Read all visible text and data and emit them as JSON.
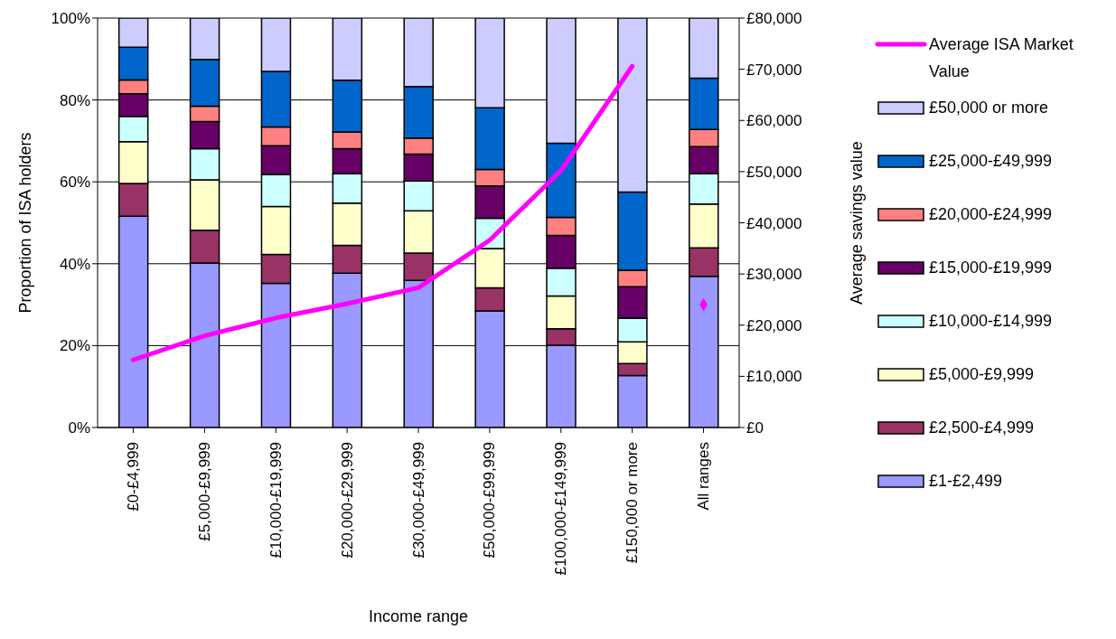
{
  "chart_data": {
    "type": "bar",
    "stacked": true,
    "xlabel": "Income range",
    "ylabel": "Proportion of ISA holders",
    "y2label": "Average savings value",
    "categories": [
      "£0-£4,999",
      "£5,000-£9,999",
      "£10,000-£19,999",
      "£20,000-£29,999",
      "£30,000-£49,999",
      "£50,000-£99,999",
      "£100,000-£149,999",
      "£150,000 or more",
      "All ranges"
    ],
    "series": [
      {
        "name": "£1-£2,499",
        "color": "#9999ff",
        "values": [
          51.6,
          40.2,
          35.2,
          37.7,
          35.9,
          28.5,
          20.1,
          12.7,
          36.9
        ]
      },
      {
        "name": "£2,500-£4,999",
        "color": "#993366",
        "values": [
          8.0,
          8.0,
          7.1,
          6.8,
          6.7,
          5.6,
          4.0,
          2.9,
          7.0
        ]
      },
      {
        "name": "£5,000-£9,999",
        "color": "#ffffcc",
        "values": [
          10.2,
          12.3,
          11.7,
          10.3,
          10.3,
          9.6,
          8.0,
          5.3,
          10.7
        ]
      },
      {
        "name": "£10,000-£14,999",
        "color": "#ccffff",
        "values": [
          6.2,
          7.6,
          7.8,
          7.2,
          7.3,
          7.4,
          6.8,
          5.8,
          7.4
        ]
      },
      {
        "name": "£15,000-£19,999",
        "color": "#660066",
        "values": [
          5.5,
          6.6,
          7.0,
          6.1,
          6.6,
          7.9,
          8.0,
          7.7,
          6.6
        ]
      },
      {
        "name": "£20,000-£24,999",
        "color": "#ff8080",
        "values": [
          3.4,
          3.8,
          4.6,
          4.1,
          3.9,
          4.0,
          4.4,
          4.0,
          4.2
        ]
      },
      {
        "name": "£25,000-£49,999",
        "color": "#0066cc",
        "values": [
          8.0,
          11.4,
          13.6,
          12.6,
          12.6,
          15.1,
          18.1,
          19.1,
          12.5
        ]
      },
      {
        "name": "£50,000 or more",
        "color": "#ccccff",
        "values": [
          7.1,
          10.1,
          13.0,
          15.2,
          16.7,
          21.9,
          30.6,
          42.5,
          14.7
        ]
      },
      {
        "name": "Average ISA Market Value",
        "type": "line",
        "axis": "y2",
        "color": "#ff00ff",
        "marker": "none",
        "values": [
          13200,
          17900,
          21400,
          24200,
          27300,
          36600,
          50200,
          70600,
          null
        ]
      },
      {
        "type": "scatter",
        "axis": "y2",
        "color": "#ff00ff",
        "marker": "diamond",
        "x": [
          "All ranges"
        ],
        "values": [
          24000
        ]
      }
    ],
    "ylim": [
      0,
      100
    ],
    "yticks": [
      {
        "value": 0,
        "label": "0%"
      },
      {
        "value": 20,
        "label": "20%"
      },
      {
        "value": 40,
        "label": "40%"
      },
      {
        "value": 60,
        "label": "60%"
      },
      {
        "value": 80,
        "label": "80%"
      },
      {
        "value": 100,
        "label": "100%"
      }
    ],
    "y2lim": [
      0,
      80000
    ],
    "y2ticks": [
      {
        "value": 0,
        "label": "£0"
      },
      {
        "value": 10000,
        "label": "£10,000"
      },
      {
        "value": 20000,
        "label": "£20,000"
      },
      {
        "value": 30000,
        "label": "£30,000"
      },
      {
        "value": 40000,
        "label": "£40,000"
      },
      {
        "value": 50000,
        "label": "£50,000"
      },
      {
        "value": 60000,
        "label": "£60,000"
      },
      {
        "value": 70000,
        "label": "£70,000"
      },
      {
        "value": 80000,
        "label": "£80,000"
      }
    ],
    "grid": "y",
    "legend": "right"
  }
}
